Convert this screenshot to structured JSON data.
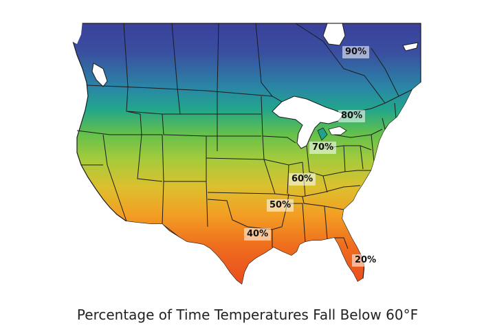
{
  "caption": "Percentage of Time Temperatures Fall Below 60°F",
  "gradient_colors": [
    "#3a3f9a",
    "#2a7fa8",
    "#1fa98a",
    "#6cc24a",
    "#b9cf3a",
    "#e8b22a",
    "#f28c1e",
    "#ee5a1c",
    "#e84a1e"
  ],
  "zone_labels": [
    "90%",
    "80%",
    "70%",
    "60%",
    "50%",
    "40%",
    "20%"
  ],
  "lake_color": "#ffffff",
  "border_color": "#1a1a1a"
}
